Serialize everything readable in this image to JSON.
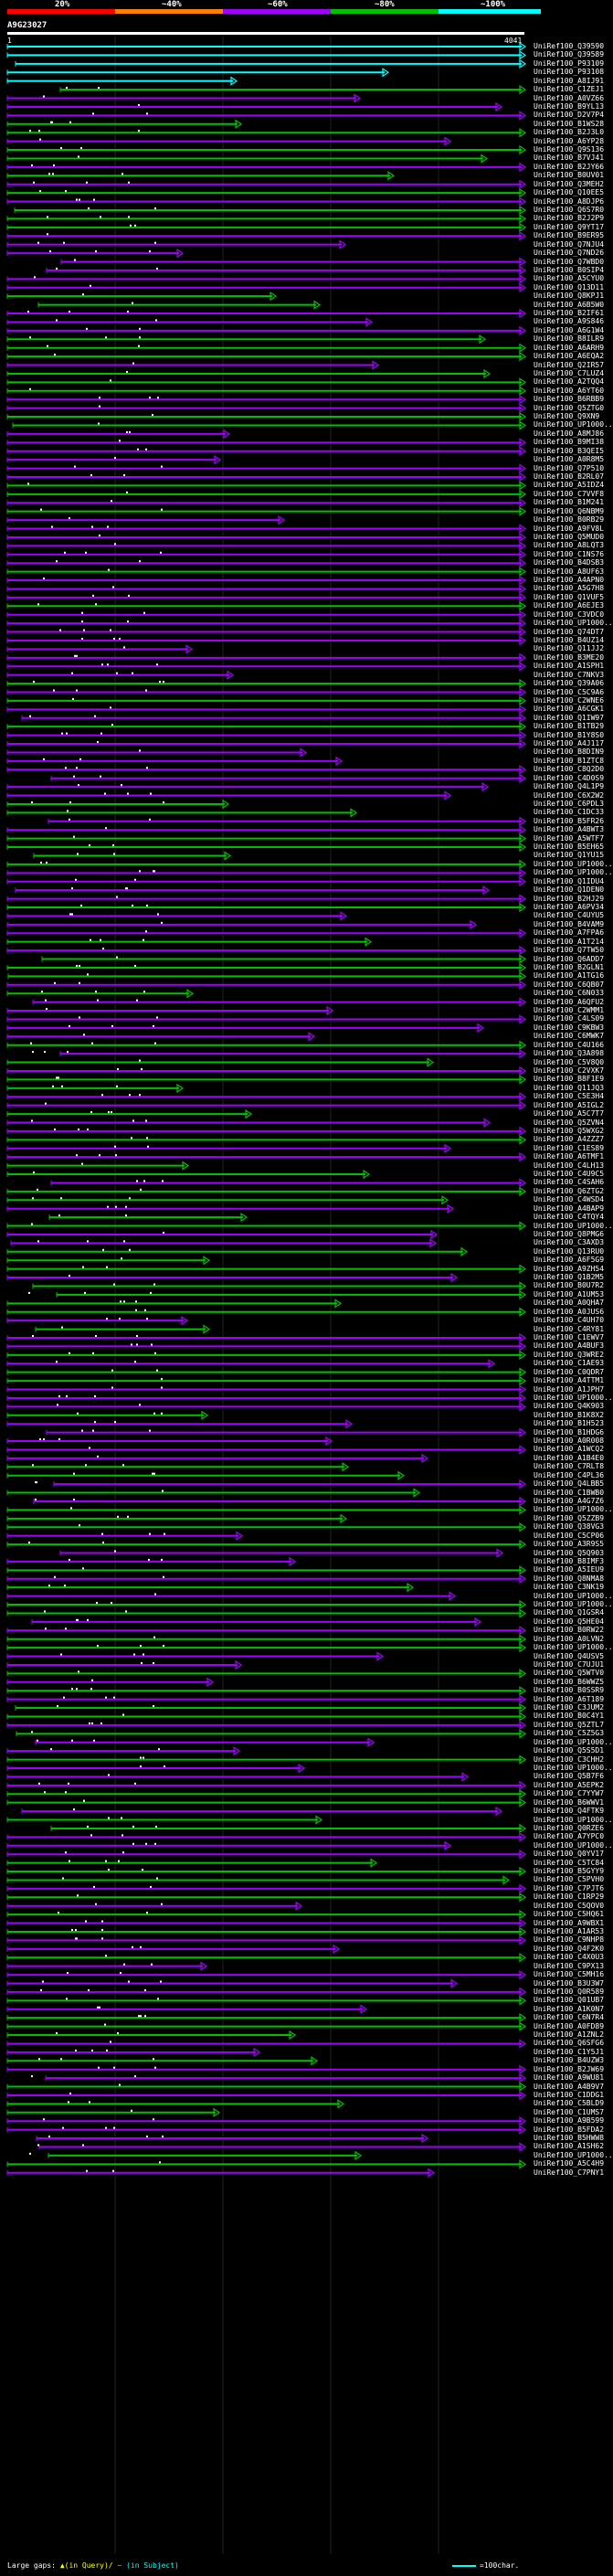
{
  "query": {
    "id": "A9G23027",
    "start": "1",
    "end": "4041"
  },
  "legend": {
    "labels": [
      "20%",
      "~40%",
      "~60%",
      "~80%",
      "~100%"
    ],
    "colors": [
      "#ff0000",
      "#ff8000",
      "#a000ff",
      "#00c000",
      "#00ffff"
    ]
  },
  "hits_shown": [
    "UniRef100_Q39590",
    "UniRef100_Q39589",
    "UniRef100_P93109",
    "UniRef100_P93108",
    "UniRef100_A8IJ91",
    "UniRef100_C1ZEJ1",
    "UniRef100_A0VZ66",
    "UniRef100_B9YL13",
    "UniRef100_D2V7P4"
  ],
  "hits": [
    "UniRef100_Q39590",
    "UniRef100_Q39589",
    "UniRef100_P93109",
    "UniRef100_P93108",
    "UniRef100_A8IJ91",
    "UniRef100_C1ZEJ1",
    "UniRef100_A0VZ66",
    "UniRef100_B9YL13",
    "UniRef100_D2V7P4",
    "UniRef100_B1WS28",
    "UniRef100_B2J3L0",
    "UniRef100_A6YP28",
    "UniRef100_Q9S136",
    "UniRef100_B7VJ41",
    "UniRef100_B2JY66",
    "UniRef100_B0UV01",
    "UniRef100_Q3MEH2",
    "UniRef100_Q10EE5",
    "UniRef100_A8DJP6",
    "UniRef100_Q6S7R0",
    "UniRef100_B2J2P9",
    "UniRef100_Q9YT17",
    "UniRef100_B9ER95",
    "UniRef100_Q7NJU4",
    "UniRef100_Q7ND26",
    "UniRef100_Q7WBD0",
    "UniRef100_B0SIP4",
    "UniRef100_A5CYU0",
    "UniRef100_Q13D11",
    "UniRef100_Q8KPJ1",
    "UniRef100_A6B5W0",
    "UniRef100_B2IF61",
    "UniRef100_A9S846",
    "UniRef100_A6G1W4",
    "UniRef100_B8ILR9",
    "UniRef100_A6ARH9",
    "UniRef100_A6EQA2",
    "UniRef100_Q2IR57",
    "UniRef100_C7LUZ4",
    "UniRef100_A2TQQ4",
    "UniRef100_A6YT60",
    "UniRef100_B6RBB9",
    "UniRef100_Q5ZTG0",
    "UniRef100_Q9XN9",
    "UniRef100_UP1000..",
    "UniRef100_A8MJ86",
    "UniRef100_B9MI38",
    "UniRef100_B3QEI5",
    "UniRef100_A0R8M5",
    "UniRef100_Q7P510",
    "UniRef100_B2RL07",
    "UniRef100_A5IDZ4",
    "UniRef100_C7VVF8",
    "UniRef100_B1M241",
    "UniRef100_Q6NBM9",
    "UniRef100_B0RB29",
    "UniRef100_A9FV8L",
    "UniRef100_Q5MUD0",
    "UniRef100_A8LQT3",
    "UniRef100_C1NS76",
    "UniRef100_B4DSB3",
    "UniRef100_A8UF63",
    "UniRef100_A4APN0",
    "UniRef100_A5G7H8",
    "UniRef100_Q1VUF5",
    "UniRef100_A6EJE3",
    "UniRef100_C3VDC0",
    "UniRef100_UP1000..",
    "UniRef100_Q74DT7",
    "UniRef100_B4UZ14",
    "UniRef100_Q11JJ2",
    "UniRef100_B3ME20",
    "UniRef100_A1SPH1",
    "UniRef100_C7NKV3",
    "UniRef100_Q39A06",
    "UniRef100_C5C9A6",
    "UniRef100_C2WNE6",
    "UniRef100_A6CGK1",
    "UniRef100_Q1IW97",
    "UniRef100_B1TB29",
    "UniRef100_B1Y8S0",
    "UniRef100_A4J117",
    "UniRef100_B8DIN9",
    "UniRef100_B1ZTC8",
    "UniRef100_C8Q2D0",
    "UniRef100_C4D0S9",
    "UniRef100_Q4L1P9",
    "UniRef100_C6X2W2",
    "UniRef100_C6PDL3",
    "UniRef100_C1DC33",
    "UniRef100_B5FR26",
    "UniRef100_A4BWT3",
    "UniRef100_A5WTF7",
    "UniRef100_B5EH65",
    "UniRef100_Q1YU15",
    "UniRef100_UP1000..",
    "UniRef100_UP1000..",
    "UniRef100_Q1IDU4",
    "UniRef100_Q1DEN0",
    "UniRef100_B2HJ29",
    "UniRef100_A6PV34",
    "UniRef100_C4UYU5",
    "UniRef100_B4VAM9",
    "UniRef100_A7FPA6",
    "UniRef100_A1T214",
    "UniRef100_Q7TW50",
    "UniRef100_Q6ADD7",
    "UniRef100_B2GLN1",
    "UniRef100_A1TG16",
    "UniRef100_C6QB07",
    "UniRef100_C6N033",
    "UniRef100_A6QFU2",
    "UniRef100_C2WMM1",
    "UniRef100_C4LS09",
    "UniRef100_C9KBW3",
    "UniRef100_C6MWK7",
    "UniRef100_C4U166",
    "UniRef100_Q3A898",
    "UniRef100_C5V8Q0",
    "UniRef100_C2VXK7",
    "UniRef100_B8F1E9",
    "UniRef100_Q11JQ3",
    "UniRef100_C5E3H4",
    "UniRef100_A5IGL2",
    "UniRef100_A5C7T7",
    "UniRef100_Q5ZVN4",
    "UniRef100_Q5WXG2",
    "UniRef100_A4ZZZ7",
    "UniRef100_C1ES89",
    "UniRef100_A6TMF1",
    "UniRef100_C4LH13",
    "UniRef100_C4U9C5",
    "UniRef100_C4SAH6",
    "UniRef100_Q6ZTG2",
    "UniRef100_C4WSD4",
    "UniRef100_A4BAP9",
    "UniRef100_C4TQY4",
    "UniRef100_UP1000..",
    "UniRef100_Q8PMG6",
    "UniRef100_C3AXD3",
    "UniRef100_Q13RU0",
    "UniRef100_A6F5G9",
    "UniRef100_A9ZH54",
    "UniRef100_Q1B2M5",
    "UniRef100_B0U7R2",
    "UniRef100_A1UM53",
    "UniRef100_A0QHA7",
    "UniRef100_A0JUS6",
    "UniRef100_C4UH70",
    "UniRef100_C4RY81",
    "UniRef100_C1EWV7",
    "UniRef100_A4BUF3",
    "UniRef100_Q3WRE2",
    "UniRef100_C1AE93",
    "UniRef100_C0QDR7",
    "UniRef100_A4TTM1",
    "UniRef100_A1JPH7",
    "UniRef100_UP1000..",
    "UniRef100_Q4K903",
    "UniRef100_B1K8X2",
    "UniRef100_B1H523",
    "UniRef100_B1HDG6",
    "UniRef100_A0R008",
    "UniRef100_A1WCQ2",
    "UniRef100_A1B4E0",
    "UniRef100_C7RLT8",
    "UniRef100_C4PL36",
    "UniRef100_Q4LBB5",
    "UniRef100_C1BWB0",
    "UniRef100_A4G7Z6",
    "UniRef100_UP1000..",
    "UniRef100_Q5ZZB9",
    "UniRef100_Q38VG3",
    "UniRef100_C5CP06",
    "UniRef100_A3R9S5",
    "UniRef100_Q5Q903",
    "UniRef100_B8IMF3",
    "UniRef100_A5IEU9",
    "UniRef100_Q8NMA8",
    "UniRef100_C3NK19",
    "UniRef100_UP1000..",
    "UniRef100_UP1000..",
    "UniRef100_Q1GSR4",
    "UniRef100_Q5HE04",
    "UniRef100_B0RW22",
    "UniRef100_A0LVN2",
    "UniRef100_UP1000..",
    "UniRef100_Q4USV5",
    "UniRef100_C7UJU1",
    "UniRef100_Q5WTV0",
    "UniRef100_B6WWZ5",
    "UniRef100_B0SSR9",
    "UniRef100_A6T189",
    "UniRef100_C3JUM2",
    "UniRef100_B0C4Y1",
    "UniRef100_Q5ZTL7",
    "UniRef100_C5Z5G3",
    "UniRef100_UP1000..",
    "UniRef100_Q5S5D1",
    "UniRef100_C3CHH2",
    "UniRef100_UP1000..",
    "UniRef100_Q5B7F6",
    "UniRef100_A5EPK2",
    "UniRef100_C7YYW7",
    "UniRef100_B6WWV1",
    "UniRef100_Q4FTK9",
    "UniRef100_UP1000..",
    "UniRef100_Q0RZE6",
    "UniRef100_A7YPC0",
    "UniRef100_UP1000..",
    "UniRef100_Q0YV17",
    "UniRef100_C5TC84",
    "UniRef100_B5GYY9",
    "UniRef100_C5PVH0",
    "UniRef100_C7PJT6",
    "UniRef100_C1RP29",
    "UniRef100_C5QOV0",
    "UniRef100_C5HQ61",
    "UniRef100_A9WBX1",
    "UniRef100_A1AR53",
    "UniRef100_C9NHP8",
    "UniRef100_Q4F2K0",
    "UniRef100_C4X0U3",
    "UniRef100_C9PX13",
    "UniRef100_C5MH16",
    "UniRef100_B3U3W7",
    "UniRef100_Q0R589",
    "UniRef100_Q01UB7",
    "UniRef100_A1K0N7",
    "UniRef100_C6N7R4",
    "UniRef100_A0FD89",
    "UniRef100_A1ZNL2",
    "UniRef100_Q6SFG6",
    "UniRef100_C1Y5J1",
    "UniRef100_B4UZW3",
    "UniRef100_B2JW69",
    "UniRef100_A9WU81",
    "UniRef100_A4B9V7",
    "UniRef100_C1DDG1",
    "UniRef100_C5BLD9",
    "UniRef100_C1UMS7",
    "UniRef100_A9B599",
    "UniRef100_B5FDA2",
    "UniRef100_B5HWW8",
    "UniRef100_A1SH62",
    "UniRef100_UP1000..",
    "UniRef100_A5C4H9",
    "UniRef100_C7PNY1"
  ],
  "footer": {
    "prefix": "Large gaps:",
    "query_gap": "▲(in Query)/",
    "subject_gap": "~ (in Subject)",
    "scale": "=100char."
  }
}
